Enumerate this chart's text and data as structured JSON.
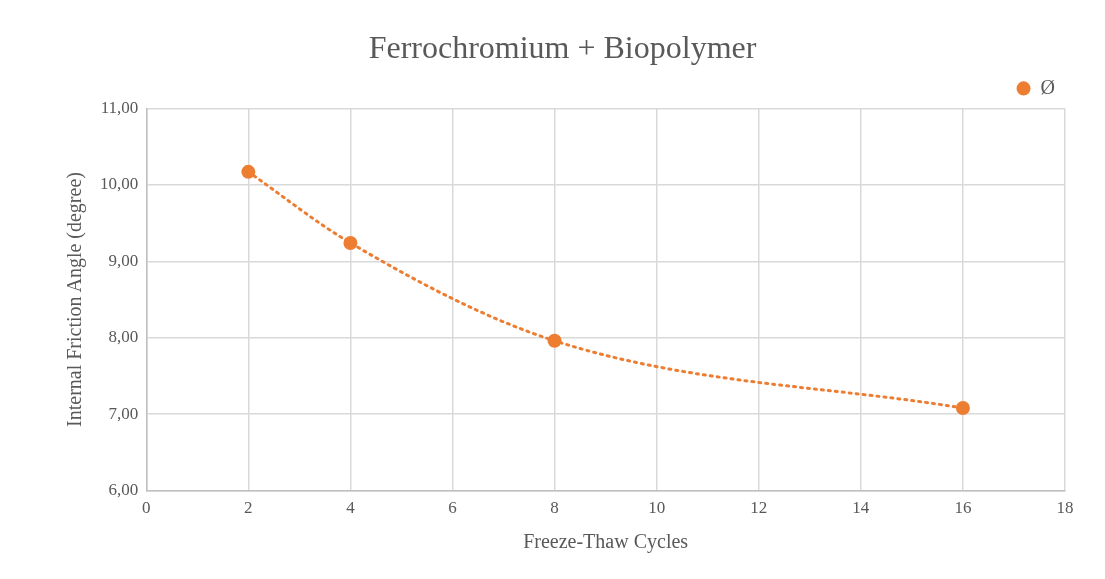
{
  "chart_data": {
    "type": "line",
    "title": "Ferrochromium + Biopolymer",
    "xlabel": "Freeze-Thaw Cycles",
    "ylabel": "Internal Friction Angle (degree)",
    "x": [
      2,
      4,
      8,
      16
    ],
    "series": [
      {
        "name": "Ø",
        "color": "#ed7d31",
        "values": [
          10.17,
          9.24,
          7.96,
          7.08
        ]
      }
    ],
    "xlim": [
      0,
      18
    ],
    "xticks": [
      0,
      2,
      4,
      6,
      8,
      10,
      12,
      14,
      16,
      18
    ],
    "ylim": [
      6,
      11
    ],
    "yticks": [
      {
        "value": 6,
        "label": "6,00"
      },
      {
        "value": 7,
        "label": "7,00"
      },
      {
        "value": 8,
        "label": "8,00"
      },
      {
        "value": 9,
        "label": "9,00"
      },
      {
        "value": 10,
        "label": "10,00"
      },
      {
        "value": 11,
        "label": "11,00"
      }
    ],
    "grid": true,
    "legend": "top right",
    "marker": "circle",
    "line_style": "dotted"
  }
}
